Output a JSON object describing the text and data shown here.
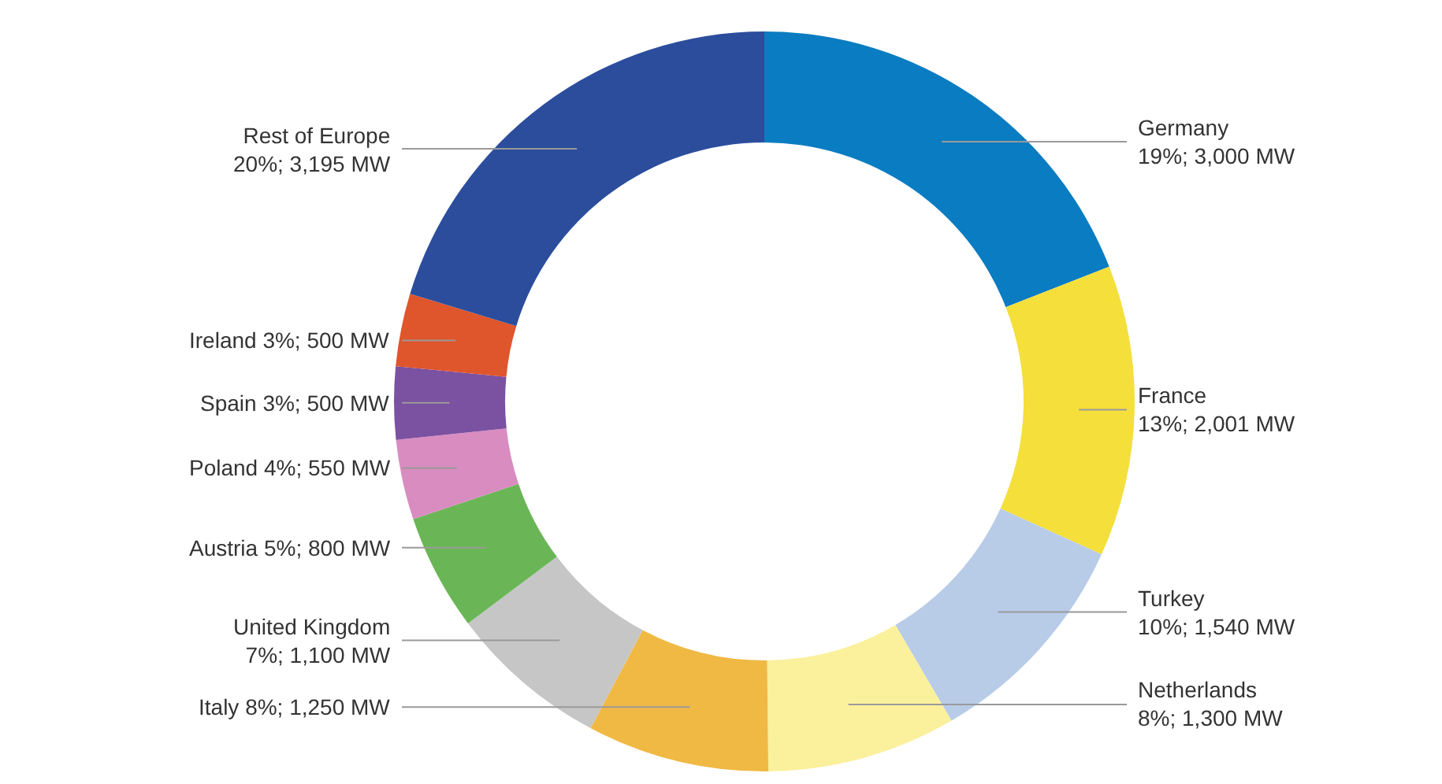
{
  "chart_data": {
    "type": "donut",
    "categories": [
      "Germany",
      "France",
      "Turkey",
      "Netherlands",
      "Italy",
      "United Kingdom",
      "Austria",
      "Poland",
      "Spain",
      "Ireland",
      "Rest of Europe"
    ],
    "values": [
      3000,
      2001,
      1540,
      1300,
      1250,
      1100,
      800,
      550,
      500,
      500,
      3195
    ],
    "colors": [
      "#0a7cc1",
      "#f5df3a",
      "#b8cce8",
      "#fbf09c",
      "#f0b944",
      "#c6c6c6",
      "#6ab656",
      "#d98cc0",
      "#7b51a1",
      "#df552c",
      "#2b4d9c"
    ],
    "value_labels": [
      "19%; 3,000 MW",
      "13%; 2,001 MW",
      "10%; 1,540 MW",
      "8%; 1,300 MW",
      "8%; 1,250 MW",
      "7%; 1,100 MW",
      "5%; 800 MW",
      "4%; 550 MW",
      "3%; 500 MW",
      "3%; 500 MW",
      "20%; 3,195 MW"
    ],
    "legend": false
  }
}
